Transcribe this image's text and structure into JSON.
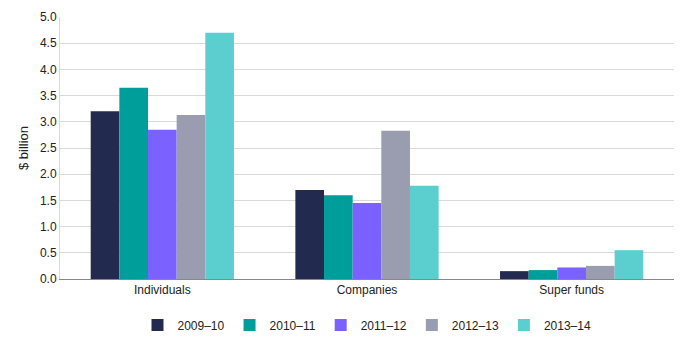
{
  "chart_data": {
    "type": "bar",
    "y_label": "$ billion",
    "categories": [
      "Individuals",
      "Companies",
      "Super funds"
    ],
    "series": [
      {
        "name": "2009–10",
        "color": "#232a4f",
        "values": [
          3.2,
          1.7,
          0.15
        ]
      },
      {
        "name": "2010–11",
        "color": "#009e9a",
        "values": [
          3.65,
          1.6,
          0.17
        ]
      },
      {
        "name": "2011–12",
        "color": "#7b61ff",
        "values": [
          2.85,
          1.45,
          0.22
        ]
      },
      {
        "name": "2012–13",
        "color": "#9a9cb0",
        "values": [
          3.13,
          2.83,
          0.25
        ]
      },
      {
        "name": "2013–14",
        "color": "#5bcfcf",
        "values": [
          4.7,
          1.78,
          0.55
        ]
      }
    ],
    "ylim": [
      0,
      5
    ],
    "yticks": [
      {
        "value": 0,
        "label": "0.0"
      },
      0.5,
      {
        "value": 1,
        "label": "1.0"
      },
      1.5,
      {
        "value": 2,
        "label": "2.0"
      },
      2.5,
      {
        "value": 3,
        "label": "3.0"
      },
      3.5,
      {
        "value": 4,
        "label": "4.0"
      },
      4.5,
      {
        "value": 5,
        "label": "5.0"
      }
    ],
    "grid": true,
    "legend": "bottom"
  }
}
